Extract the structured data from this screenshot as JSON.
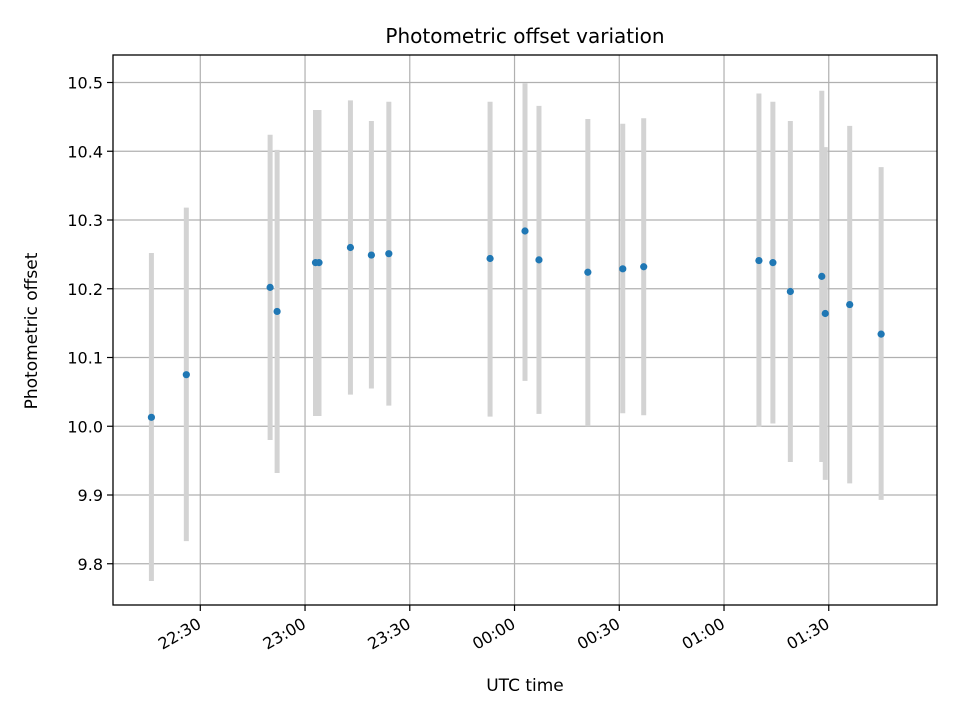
{
  "chart_data": {
    "type": "scatter",
    "title": "Photometric offset variation",
    "xlabel": "UTC time",
    "ylabel": "Photometric offset",
    "x_ticks": [
      "22:30",
      "23:00",
      "23:30",
      "00:00",
      "00:30",
      "01:00",
      "01:30"
    ],
    "y_ticks": [
      "9.8",
      "9.9",
      "10.0",
      "10.1",
      "10.2",
      "10.3",
      "10.4",
      "10.5"
    ],
    "xlim": [
      "22:05",
      "02:01"
    ],
    "ylim": [
      9.74,
      10.54
    ],
    "grid": true,
    "colors": {
      "points": "#1f77b4",
      "errorbars": "#d3d3d3",
      "grid": "#b0b0b0"
    },
    "series": [
      {
        "points": [
          {
            "x": "22:16",
            "y": 10.013,
            "yerr_low": 9.775,
            "yerr_high": 10.252
          },
          {
            "x": "22:26",
            "y": 10.075,
            "yerr_low": 9.833,
            "yerr_high": 10.318
          },
          {
            "x": "22:50",
            "y": 10.202,
            "yerr_low": 9.98,
            "yerr_high": 10.424
          },
          {
            "x": "22:52",
            "y": 10.167,
            "yerr_low": 9.932,
            "yerr_high": 10.402
          },
          {
            "x": "23:03",
            "y": 10.238,
            "yerr_low": 10.015,
            "yerr_high": 10.46
          },
          {
            "x": "23:04",
            "y": 10.238,
            "yerr_low": 10.015,
            "yerr_high": 10.46
          },
          {
            "x": "23:13",
            "y": 10.26,
            "yerr_low": 10.046,
            "yerr_high": 10.474
          },
          {
            "x": "23:19",
            "y": 10.249,
            "yerr_low": 10.055,
            "yerr_high": 10.444
          },
          {
            "x": "23:24",
            "y": 10.251,
            "yerr_low": 10.03,
            "yerr_high": 10.472
          },
          {
            "x": "23:53",
            "y": 10.244,
            "yerr_low": 10.014,
            "yerr_high": 10.472
          },
          {
            "x": "00:03",
            "y": 10.284,
            "yerr_low": 10.066,
            "yerr_high": 10.499
          },
          {
            "x": "00:07",
            "y": 10.242,
            "yerr_low": 10.018,
            "yerr_high": 10.466
          },
          {
            "x": "00:21",
            "y": 10.224,
            "yerr_low": 10.0,
            "yerr_high": 10.447
          },
          {
            "x": "00:31",
            "y": 10.229,
            "yerr_low": 10.019,
            "yerr_high": 10.44
          },
          {
            "x": "00:37",
            "y": 10.232,
            "yerr_low": 10.016,
            "yerr_high": 10.448
          },
          {
            "x": "01:10",
            "y": 10.241,
            "yerr_low": 9.999,
            "yerr_high": 10.484
          },
          {
            "x": "01:14",
            "y": 10.238,
            "yerr_low": 10.004,
            "yerr_high": 10.472
          },
          {
            "x": "01:19",
            "y": 10.196,
            "yerr_low": 9.948,
            "yerr_high": 10.444
          },
          {
            "x": "01:28",
            "y": 10.218,
            "yerr_low": 9.948,
            "yerr_high": 10.488
          },
          {
            "x": "01:29",
            "y": 10.164,
            "yerr_low": 9.922,
            "yerr_high": 10.406
          },
          {
            "x": "01:36",
            "y": 10.177,
            "yerr_low": 9.917,
            "yerr_high": 10.437
          },
          {
            "x": "01:45",
            "y": 10.134,
            "yerr_low": 9.893,
            "yerr_high": 10.377
          }
        ]
      }
    ]
  }
}
